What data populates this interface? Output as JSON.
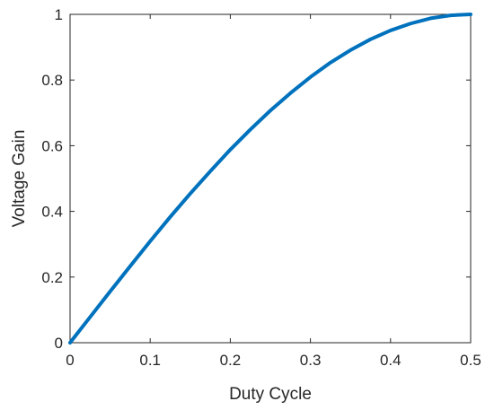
{
  "chart_data": {
    "type": "line",
    "title": "",
    "xlabel": "Duty Cycle",
    "ylabel": "Voltage Gain",
    "xlim": [
      0,
      0.5
    ],
    "ylim": [
      0,
      1
    ],
    "xticks": [
      0,
      0.1,
      0.2,
      0.3,
      0.4,
      0.5
    ],
    "xtick_labels": [
      "0",
      "0.1",
      "0.2",
      "0.3",
      "0.4",
      "0.5"
    ],
    "yticks": [
      0,
      0.2,
      0.4,
      0.6,
      0.8,
      1
    ],
    "ytick_labels": [
      "0",
      "0.2",
      "0.4",
      "0.6",
      "0.8",
      "1"
    ],
    "grid": false,
    "legend": "none",
    "series": [
      {
        "color": "#0072BD",
        "x": [
          0,
          0.025,
          0.05,
          0.075,
          0.1,
          0.125,
          0.15,
          0.175,
          0.2,
          0.225,
          0.25,
          0.275,
          0.3,
          0.325,
          0.35,
          0.375,
          0.4,
          0.425,
          0.45,
          0.475,
          0.5
        ],
        "y": [
          0,
          0.078,
          0.156,
          0.233,
          0.309,
          0.383,
          0.454,
          0.522,
          0.588,
          0.649,
          0.707,
          0.76,
          0.809,
          0.853,
          0.891,
          0.924,
          0.951,
          0.972,
          0.988,
          0.997,
          1.0
        ]
      }
    ]
  }
}
